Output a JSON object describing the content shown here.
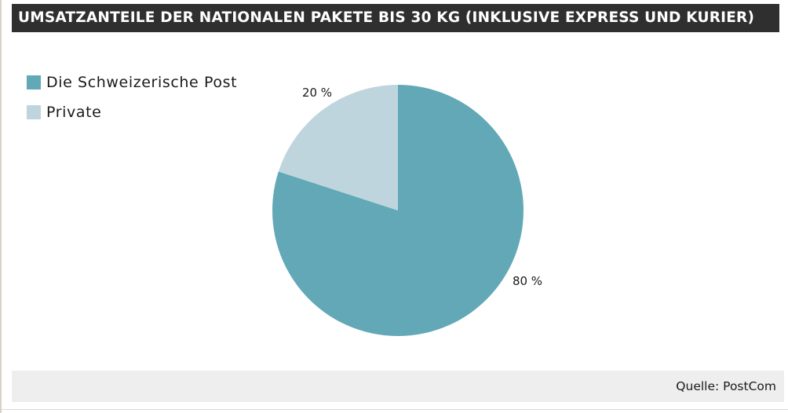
{
  "header": {
    "title": "UMSATZANTEILE DER NATIONALEN PAKETE BIS 30 KG (INKLUSIVE EXPRESS UND KURIER)"
  },
  "footer": {
    "source": "Quelle: PostCom"
  },
  "chart_data": {
    "type": "pie",
    "title": "UMSATZANTEILE DER NATIONALEN PAKETE BIS 30 KG (INKLUSIVE EXPRESS UND KURIER)",
    "legend_position": "top-left",
    "slices": [
      {
        "name": "Die Schweizerische Post",
        "value": 80,
        "label": "80 %",
        "color": "#62a8b7"
      },
      {
        "name": "Private",
        "value": 20,
        "label": "20 %",
        "color": "#bfd5dd"
      }
    ]
  }
}
